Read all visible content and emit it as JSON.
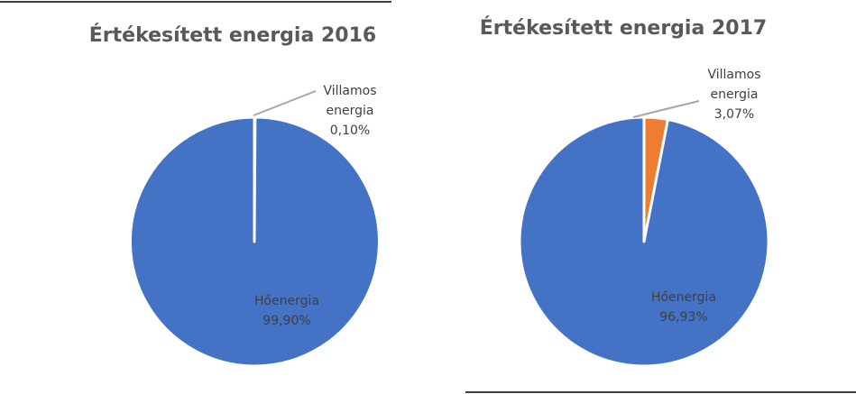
{
  "chart_data": [
    {
      "type": "pie",
      "title": "Értékesített energia 2016",
      "slices": [
        {
          "label_lines": [
            "Villamos",
            "energia"
          ],
          "value_text": "0,10%",
          "value": 0.1,
          "color": "#ed7d31"
        },
        {
          "label_lines": [
            "Hőenergia"
          ],
          "value_text": "99,90%",
          "value": 99.9,
          "color": "#4472c4"
        }
      ]
    },
    {
      "type": "pie",
      "title": "Értékesített energia 2017",
      "slices": [
        {
          "label_lines": [
            "Villamos",
            "energia"
          ],
          "value_text": "3,07%",
          "value": 3.07,
          "color": "#ed7d31"
        },
        {
          "label_lines": [
            "Hőenergia"
          ],
          "value_text": "96,93%",
          "value": 96.93,
          "color": "#4472c4"
        }
      ]
    }
  ]
}
